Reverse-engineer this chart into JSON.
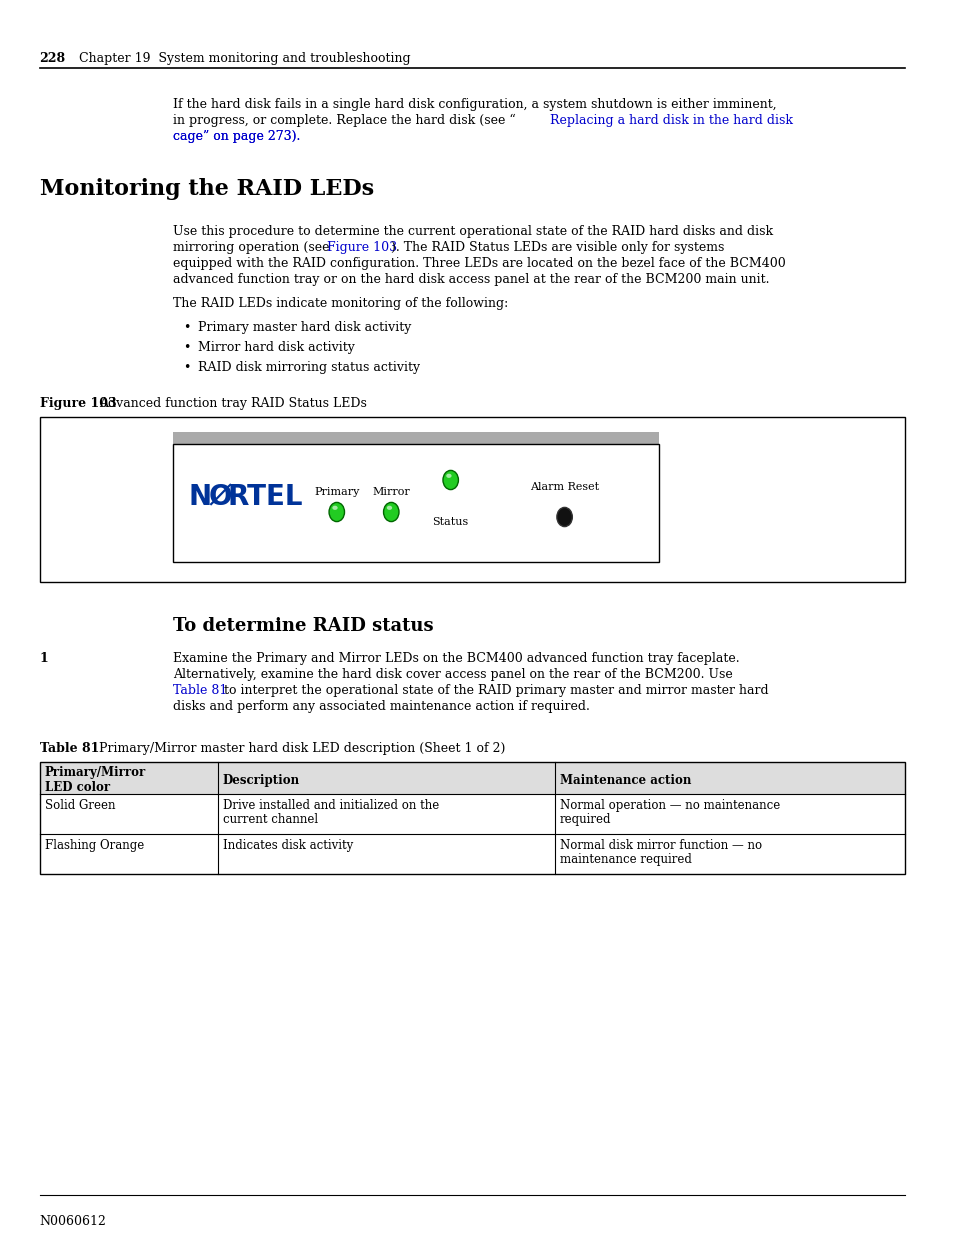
{
  "page_num": "228",
  "chapter_header": "Chapter 19  System monitoring and troubleshooting",
  "bg_color": "#ffffff",
  "text_color": "#000000",
  "link_color": "#0000cc",
  "section_title": "Monitoring the RAID LEDs",
  "para1": "If the hard disk fails in a single hard disk configuration, a system shutdown is either imminent,\nin progress, or complete. Replace the hard disk (see “Replacing a hard disk in the hard disk\ncage” on page 273).",
  "para1_link": "Replacing a hard disk in the hard disk\ncage” on page 273",
  "section_para1": "Use this procedure to determine the current operational state of the RAID hard disks and disk\nmirroring operation (see Figure 103). The RAID Status LEDs are visible only for systems\nequipped with the RAID configuration. Three LEDs are located on the bezel face of the BCM400\nadvanced function tray or on the hard disk access panel at the rear of the BCM200 main unit.",
  "section_para2": "The RAID LEDs indicate monitoring of the following:",
  "bullets": [
    "Primary master hard disk activity",
    "Mirror hard disk activity",
    "RAID disk mirroring status activity"
  ],
  "figure_label": "Figure 103",
  "figure_caption": "Advanced function tray RAID Status LEDs",
  "section2_title": "To determine RAID status",
  "step1_num": "1",
  "step1_text": "Examine the Primary and Mirror LEDs on the BCM400 advanced function tray faceplate.\nAlternatively, examine the hard disk cover access panel on the rear of the BCM200. Use\nTable 81 to interpret the operational state of the RAID primary master and mirror master hard\ndisks and perform any associated maintenance action if required.",
  "table_label": "Table 81",
  "table_caption": "Primary/Mirror master hard disk LED description (Sheet 1 of 2)",
  "table_headers": [
    "Primary/Mirror\nLED color",
    "Description",
    "Maintenance action"
  ],
  "table_rows": [
    [
      "Solid Green",
      "Drive installed and initialized on the\ncurrent channel",
      "Normal operation — no maintenance\nrequired"
    ],
    [
      "Flashing Orange",
      "Indicates disk activity",
      "Normal disk mirror function — no\nmaintenance required"
    ]
  ],
  "footer_text": "N0060612",
  "nortel_color": "#003399"
}
